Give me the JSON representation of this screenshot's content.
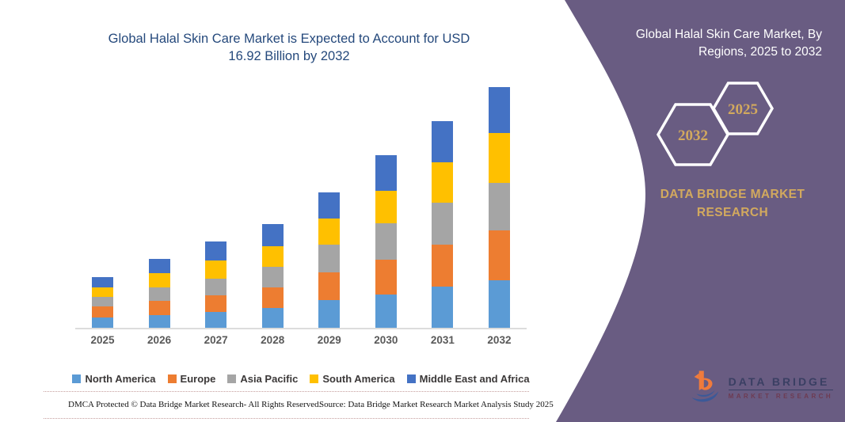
{
  "left": {
    "footer_left": "DMCA Protected © Data Bridge Market Research-  All Rights Reserved.",
    "footer_right": "Source: Data Bridge Market Research  Market Analysis Study 2025"
  },
  "chart_data": {
    "type": "bar",
    "stacked": true,
    "title": "Global Halal Skin Care Market is Expected to Account for USD 16.92 Billion by 2032",
    "unit": "USD Billion",
    "categories": [
      "2025",
      "2026",
      "2027",
      "2028",
      "2029",
      "2030",
      "2031",
      "2032"
    ],
    "series": [
      {
        "name": "North America",
        "color": "#5B9BD5",
        "values": [
          0.72,
          0.9,
          1.13,
          1.41,
          1.94,
          2.35,
          2.9,
          3.37
        ]
      },
      {
        "name": "Europe",
        "color": "#ED7D31",
        "values": [
          0.8,
          1.02,
          1.18,
          1.43,
          1.94,
          2.45,
          2.92,
          3.47
        ]
      },
      {
        "name": "Asia Pacific",
        "color": "#A5A5A5",
        "values": [
          0.67,
          0.92,
          1.16,
          1.43,
          1.94,
          2.56,
          3.0,
          3.37
        ]
      },
      {
        "name": "South America",
        "color": "#FFC000",
        "values": [
          0.67,
          0.98,
          1.29,
          1.47,
          1.86,
          2.29,
          2.82,
          3.48
        ]
      },
      {
        "name": "Middle East and Africa",
        "color": "#4472C4",
        "values": [
          0.7,
          1.02,
          1.33,
          1.55,
          1.84,
          2.51,
          2.9,
          3.23
        ]
      }
    ],
    "totals_by_year": [
      3.56,
      4.84,
      6.09,
      7.29,
      9.52,
      12.16,
      14.54,
      16.92
    ],
    "highlight_value": "USD 16.92 Billion by 2032",
    "ylim": [
      0,
      18
    ],
    "gridlines": false,
    "legend_position": "bottom"
  },
  "right_panel": {
    "background": "#695C82",
    "title": "Global Halal Skin Care Market, By Regions, 2025 to 2032",
    "hexagons": [
      {
        "label": "2032"
      },
      {
        "label": "2025"
      }
    ],
    "accent_text_color": "#D2A95E",
    "brand": "DATA BRIDGE MARKET RESEARCH",
    "logo": {
      "line1": "DATA BRIDGE",
      "line2": "MARKET RESEARCH"
    }
  }
}
